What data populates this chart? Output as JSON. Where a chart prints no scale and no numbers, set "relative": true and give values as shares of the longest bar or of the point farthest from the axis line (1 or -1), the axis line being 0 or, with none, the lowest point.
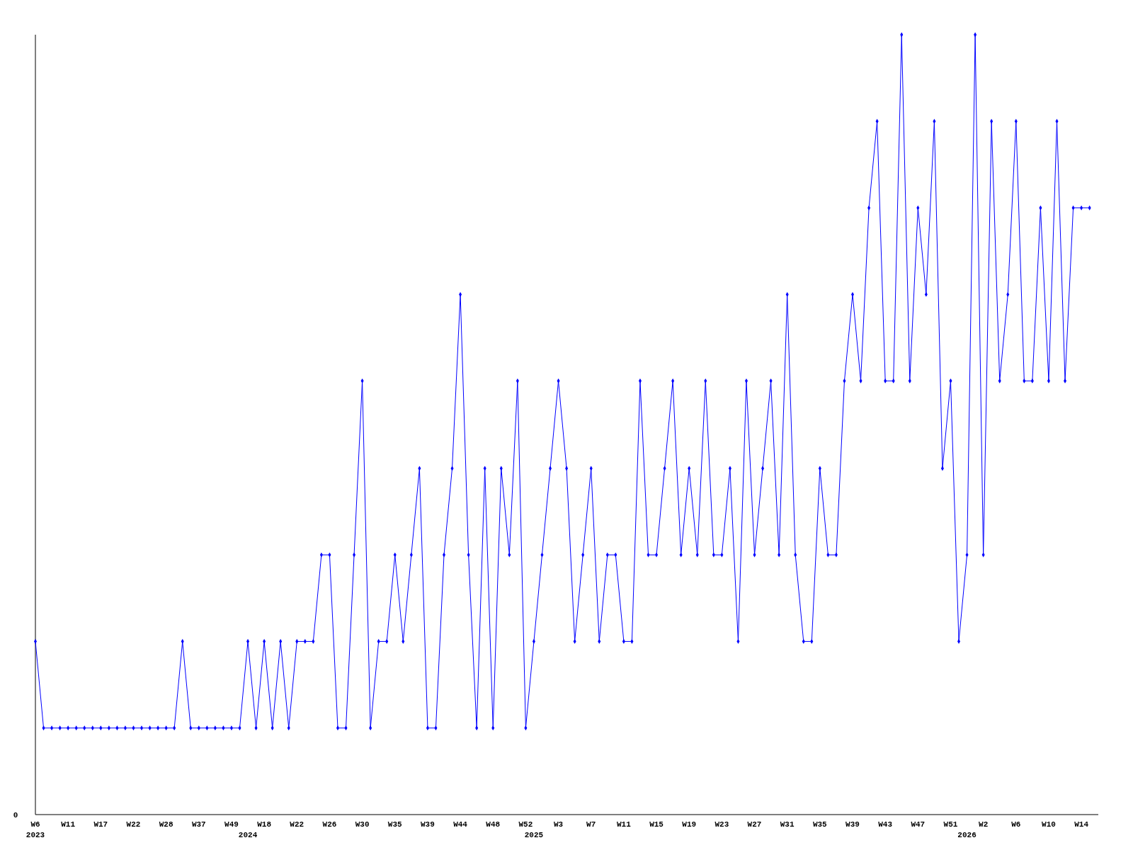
{
  "chart_data": {
    "type": "line",
    "relative": true,
    "marker": "diamond",
    "line_style": "solid",
    "annotations": [
      "0"
    ],
    "categories": [
      "W6\n2023",
      null,
      null,
      null,
      "W11",
      null,
      null,
      null,
      "W17",
      null,
      null,
      null,
      "W22",
      null,
      null,
      null,
      "W28",
      null,
      null,
      null,
      "W37",
      null,
      null,
      null,
      "W49",
      null,
      "\n2024",
      null,
      "W18",
      null,
      null,
      null,
      "W22",
      null,
      null,
      null,
      "W26",
      null,
      null,
      null,
      "W30",
      null,
      null,
      null,
      "W35",
      null,
      null,
      null,
      "W39",
      null,
      null,
      null,
      "W44",
      null,
      null,
      null,
      "W48",
      null,
      null,
      null,
      "W52",
      "\n2025",
      null,
      null,
      "W3",
      null,
      null,
      null,
      "W7",
      null,
      null,
      null,
      "W11",
      null,
      null,
      null,
      "W15",
      null,
      null,
      null,
      "W19",
      null,
      null,
      null,
      "W23",
      null,
      null,
      null,
      "W27",
      null,
      null,
      null,
      "W31",
      null,
      null,
      null,
      "W35",
      null,
      null,
      null,
      "W39",
      null,
      null,
      null,
      "W43",
      null,
      null,
      null,
      "W47",
      null,
      null,
      null,
      "W51",
      null,
      "\n2026",
      null,
      "W2",
      null,
      null,
      null,
      "W6",
      null,
      null,
      null,
      "W10",
      null,
      null,
      null,
      "W14",
      null
    ],
    "series": [
      {
        "color": "#0000ff",
        "values": [
          0.222,
          0.111,
          0.111,
          0.111,
          0.111,
          0.111,
          0.111,
          0.111,
          0.111,
          0.111,
          0.111,
          0.111,
          0.111,
          0.111,
          0.111,
          0.111,
          0.111,
          0.111,
          0.222,
          0.111,
          0.111,
          0.111,
          0.111,
          0.111,
          0.111,
          0.111,
          0.222,
          0.111,
          0.222,
          0.111,
          0.222,
          0.111,
          0.222,
          0.222,
          0.222,
          0.333,
          0.333,
          0.111,
          0.111,
          0.333,
          0.556,
          0.111,
          0.222,
          0.222,
          0.333,
          0.222,
          0.333,
          0.444,
          0.111,
          0.111,
          0.333,
          0.444,
          0.667,
          0.333,
          0.111,
          0.444,
          0.111,
          0.444,
          0.333,
          0.556,
          0.111,
          0.222,
          0.333,
          0.444,
          0.556,
          0.444,
          0.222,
          0.333,
          0.444,
          0.222,
          0.333,
          0.333,
          0.222,
          0.222,
          0.556,
          0.333,
          0.333,
          0.444,
          0.556,
          0.333,
          0.444,
          0.333,
          0.556,
          0.333,
          0.333,
          0.444,
          0.222,
          0.556,
          0.333,
          0.444,
          0.556,
          0.333,
          0.667,
          0.333,
          0.222,
          0.222,
          0.444,
          0.333,
          0.333,
          0.556,
          0.667,
          0.556,
          0.778,
          0.889,
          0.556,
          0.556,
          1,
          0.556,
          0.778,
          0.667,
          0.889,
          0.444,
          0.556,
          0.222,
          0.333,
          1,
          0.333,
          0.889,
          0.556,
          0.667,
          0.889,
          0.556,
          0.556,
          0.778,
          0.556,
          0.889,
          0.556,
          0.778,
          0.778,
          0.778
        ]
      }
    ]
  }
}
